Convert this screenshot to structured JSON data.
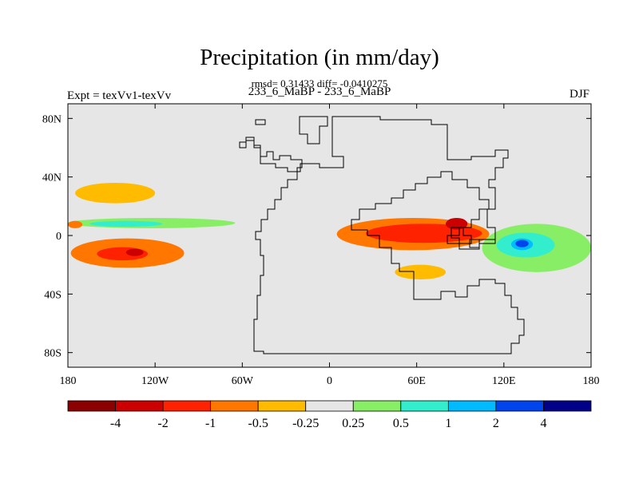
{
  "chart_data": {
    "type": "contour-map",
    "title": "Precipitation (in mm/day)",
    "stats": {
      "rmsd_label": "rmsd= 0.31433",
      "diff_label": "diff= -0.0410275"
    },
    "subtitle": "233_6_MaBP - 233_6_MaBP",
    "left_label": "Expt = texVv1-texVv",
    "right_label": "DJF",
    "x_axis": {
      "range": [
        -180,
        180
      ],
      "ticks": [
        {
          "value": -180,
          "label": "180"
        },
        {
          "value": -120,
          "label": "120W"
        },
        {
          "value": -60,
          "label": "60W"
        },
        {
          "value": 0,
          "label": "0"
        },
        {
          "value": 60,
          "label": "60E"
        },
        {
          "value": 120,
          "label": "120E"
        },
        {
          "value": 180,
          "label": "180"
        }
      ]
    },
    "y_axis": {
      "range": [
        -90,
        90
      ],
      "ticks": [
        {
          "value": 80,
          "label": "80N"
        },
        {
          "value": 40,
          "label": "40N"
        },
        {
          "value": 0,
          "label": "0"
        },
        {
          "value": -40,
          "label": "40S"
        },
        {
          "value": -80,
          "label": "80S"
        }
      ]
    },
    "colorbar": {
      "colors": [
        "#8b0000",
        "#cc0000",
        "#ff2200",
        "#ff7700",
        "#ffbb00",
        "#e6e6e6",
        "#88ee66",
        "#33eecc",
        "#00bbff",
        "#0044ee",
        "#000088"
      ],
      "labels": [
        "-4",
        "-2",
        "-1",
        "-0.5",
        "-0.25",
        "0.25",
        "0.5",
        "1",
        "2",
        "4"
      ]
    },
    "anomaly_regions": [
      {
        "name": "south-pacific-band",
        "lon": [
          -178,
          -100
        ],
        "lat": [
          -22,
          -2
        ],
        "level": -0.5
      },
      {
        "name": "south-pacific-core",
        "lon": [
          -160,
          -125
        ],
        "lat": [
          -17,
          -8
        ],
        "level": -1
      },
      {
        "name": "south-pacific-max",
        "lon": [
          -140,
          -128
        ],
        "lat": [
          -14,
          -9
        ],
        "level": -2
      },
      {
        "name": "indian-ocean-band",
        "lon": [
          5,
          110
        ],
        "lat": [
          -10,
          12
        ],
        "level": -0.5
      },
      {
        "name": "indian-ocean-core",
        "lon": [
          25,
          105
        ],
        "lat": [
          -5,
          8
        ],
        "level": -1
      },
      {
        "name": "bay-of-bengal-max",
        "lon": [
          80,
          95
        ],
        "lat": [
          4,
          12
        ],
        "level": -2
      },
      {
        "name": "southern-africa-patch",
        "lon": [
          45,
          80
        ],
        "lat": [
          -30,
          -20
        ],
        "level": -0.25
      },
      {
        "name": "north-pacific-patch",
        "lon": [
          -175,
          -120
        ],
        "lat": [
          22,
          36
        ],
        "level": -0.25
      },
      {
        "name": "west-pacific-band",
        "lon": [
          105,
          180
        ],
        "lat": [
          -25,
          8
        ],
        "level": 0.25
      },
      {
        "name": "west-pacific-core",
        "lon": [
          115,
          155
        ],
        "lat": [
          -15,
          2
        ],
        "level": 0.5
      },
      {
        "name": "west-pacific-max",
        "lon": [
          125,
          140
        ],
        "lat": [
          -10,
          -2
        ],
        "level": 1
      },
      {
        "name": "west-pacific-peak",
        "lon": [
          128,
          137
        ],
        "lat": [
          -8,
          -3
        ],
        "level": 2
      },
      {
        "name": "central-pacific-itcz",
        "lon": [
          -180,
          -65
        ],
        "lat": [
          5,
          12
        ],
        "level": 0.25
      },
      {
        "name": "central-pacific-itcz-core",
        "lon": [
          -165,
          -115
        ],
        "lat": [
          6,
          10
        ],
        "level": 0.5
      },
      {
        "name": "east-pacific-itcz",
        "lon": [
          -180,
          -170
        ],
        "lat": [
          5,
          10
        ],
        "level": -0.5
      }
    ]
  }
}
